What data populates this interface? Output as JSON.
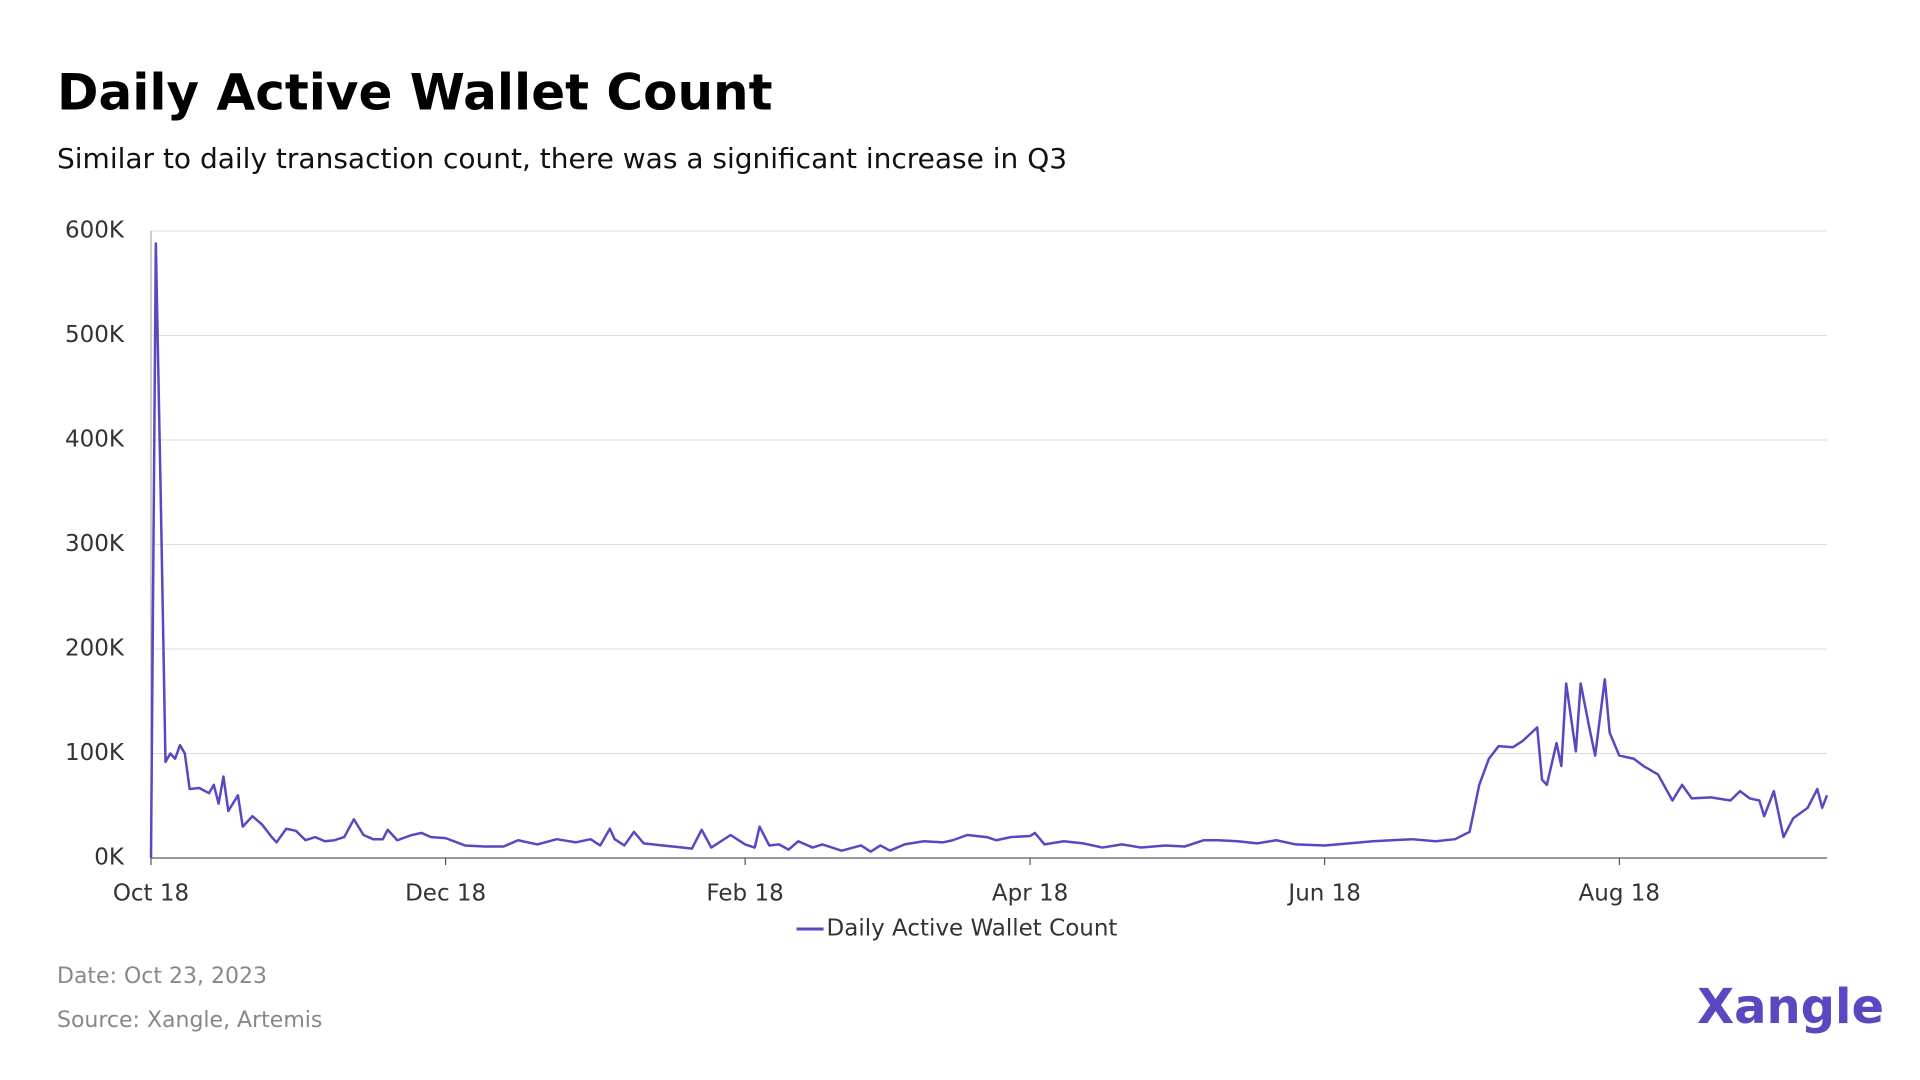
{
  "chart_data": {
    "type": "line",
    "title": "Daily Active Wallet Count",
    "subtitle": "Similar to daily transaction count, there was a significant increase in Q3",
    "x": [
      "Oct 18",
      "Oct 19",
      "Oct 20",
      "Oct 21",
      "Oct 22",
      "Oct 23",
      "Oct 24",
      "Oct 25",
      "Oct 26",
      "Oct 28",
      "Oct 30",
      "Oct 31",
      "Nov 1",
      "Nov 2",
      "Nov 3",
      "Nov 5",
      "Nov 6",
      "Nov 8",
      "Nov 10",
      "Nov 12",
      "Nov 13",
      "Nov 15",
      "Nov 17",
      "Nov 19",
      "Nov 21",
      "Nov 23",
      "Nov 25",
      "Nov 27",
      "Nov 29",
      "Dec 1",
      "Dec 3",
      "Dec 5",
      "Dec 6",
      "Dec 8",
      "Dec 11",
      "Dec 13",
      "Dec 15",
      "Dec 18",
      "Dec 22",
      "Dec 26",
      "Dec 30",
      "Jan 2",
      "Jan 6",
      "Jan 10",
      "Jan 14",
      "Jan 17",
      "Jan 19",
      "Jan 21",
      "Jan 22",
      "Jan 24",
      "Jan 26",
      "Jan 28",
      "Feb 1",
      "Feb 5",
      "Feb 7",
      "Feb 9",
      "Feb 11",
      "Feb 15",
      "Feb 18",
      "Feb 20",
      "Feb 21",
      "Feb 23",
      "Feb 25",
      "Feb 27",
      "Mar 1",
      "Mar 4",
      "Mar 6",
      "Mar 10",
      "Mar 14",
      "Mar 16",
      "Mar 18",
      "Mar 20",
      "Mar 23",
      "Mar 27",
      "Mar 31",
      "Apr 2",
      "Apr 5",
      "Apr 9",
      "Apr 11",
      "Apr 14",
      "Apr 18",
      "Apr 19",
      "Apr 21",
      "Apr 25",
      "Apr 29",
      "May 3",
      "May 7",
      "May 11",
      "May 16",
      "May 20",
      "May 24",
      "May 27",
      "May 31",
      "Jun 4",
      "Jun 8",
      "Jun 12",
      "Jun 18",
      "Jun 23",
      "Jun 28",
      "Jul 2",
      "Jul 6",
      "Jul 11",
      "Jul 15",
      "Jul 18",
      "Jul 20",
      "Jul 22",
      "Jul 24",
      "Jul 27",
      "Jul 29",
      "Aug 1",
      "Aug 2",
      "Aug 3",
      "Aug 5",
      "Aug 6",
      "Aug 7",
      "Aug 9",
      "Aug 10",
      "Aug 12",
      "Aug 13",
      "Aug 15",
      "Aug 16",
      "Aug 18",
      "Aug 21",
      "Aug 23",
      "Aug 26",
      "Aug 29",
      "Aug 31",
      "Sep 2",
      "Sep 6",
      "Sep 10",
      "Sep 12",
      "Sep 14",
      "Sep 16",
      "Sep 17",
      "Sep 19",
      "Sep 21",
      "Sep 23",
      "Sep 26",
      "Sep 28",
      "Sep 29",
      "Sep 30"
    ],
    "series": [
      {
        "name": "Daily Active Wallet Count",
        "color": "#5a48c2",
        "values": [
          0,
          588000,
          350000,
          92000,
          100000,
          95000,
          108000,
          100000,
          66000,
          67000,
          62000,
          70000,
          52000,
          78000,
          45000,
          60000,
          30000,
          40000,
          32000,
          20000,
          15000,
          28000,
          26000,
          17000,
          20000,
          16000,
          17000,
          20000,
          37000,
          22000,
          18000,
          18000,
          27000,
          17000,
          22000,
          24000,
          20000,
          19000,
          12000,
          11000,
          11000,
          17000,
          13000,
          18000,
          15000,
          18000,
          12000,
          28000,
          18000,
          12000,
          25000,
          14000,
          12000,
          10000,
          9000,
          27000,
          10000,
          22000,
          13000,
          10000,
          30000,
          12000,
          13000,
          8000,
          16000,
          10000,
          13000,
          7000,
          12000,
          6000,
          12000,
          7000,
          13000,
          16000,
          15000,
          17000,
          22000,
          20000,
          17000,
          20000,
          21000,
          24000,
          13000,
          16000,
          14000,
          10000,
          13000,
          10000,
          12000,
          11000,
          17000,
          17000,
          16000,
          14000,
          17000,
          13000,
          12000,
          14000,
          16000,
          17000,
          18000,
          16000,
          18000,
          25000,
          70000,
          95000,
          107000,
          106000,
          112000,
          125000,
          75000,
          70000,
          110000,
          88000,
          167000,
          102000,
          167000,
          120000,
          98000,
          171000,
          120000,
          98000,
          95000,
          88000,
          80000,
          55000,
          70000,
          57000,
          58000,
          55000,
          64000,
          57000,
          55000,
          40000,
          64000,
          20000,
          38000,
          48000,
          66000,
          48000,
          60000
        ]
      }
    ],
    "ylim": [
      0,
      600000
    ],
    "yticks": [
      {
        "value": 0,
        "label": "0K"
      },
      {
        "value": 100000,
        "label": "100K"
      },
      {
        "value": 200000,
        "label": "200K"
      },
      {
        "value": 300000,
        "label": "300K"
      },
      {
        "value": 400000,
        "label": "400K"
      },
      {
        "value": 500000,
        "label": "500K"
      },
      {
        "value": 600000,
        "label": "600K"
      }
    ],
    "xticks": [
      "Oct 18",
      "Dec 18",
      "Feb 18",
      "Apr 18",
      "Jun 18",
      "Aug 18"
    ],
    "grid": true,
    "legend": "bottom"
  },
  "footer": {
    "date": "Date: Oct 23, 2023",
    "source": "Source: Xangle, Artemis",
    "brand": "Xangle"
  }
}
